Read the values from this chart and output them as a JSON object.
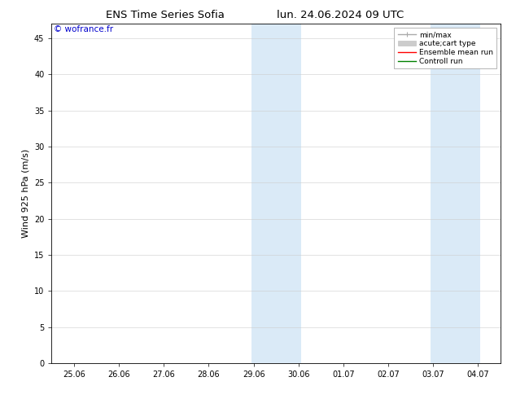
{
  "title_left": "ENS Time Series Sofia",
  "title_right": "lun. 24.06.2024 09 UTC",
  "ylabel": "Wind 925 hPa (m/s)",
  "watermark": "© wofrance.fr",
  "watermark_color": "#0000cc",
  "ylim": [
    0,
    47
  ],
  "yticks": [
    0,
    5,
    10,
    15,
    20,
    25,
    30,
    35,
    40,
    45
  ],
  "xtick_labels": [
    "25.06",
    "26.06",
    "27.06",
    "28.06",
    "29.06",
    "30.06",
    "01.07",
    "02.07",
    "03.07",
    "04.07"
  ],
  "xtick_positions": [
    0,
    1,
    2,
    3,
    4,
    5,
    6,
    7,
    8,
    9
  ],
  "shaded_regions": [
    {
      "xmin": 3.95,
      "xmax": 5.05,
      "color": "#daeaf7"
    },
    {
      "xmin": 7.95,
      "xmax": 9.05,
      "color": "#daeaf7"
    }
  ],
  "background_color": "#ffffff",
  "plot_bg_color": "#ffffff",
  "legend_items": [
    {
      "label": "min/max",
      "color": "#aaaaaa",
      "lw": 1.0,
      "style": "minmax"
    },
    {
      "label": "acute;cart type",
      "color": "#cccccc",
      "lw": 6,
      "style": "bar"
    },
    {
      "label": "Ensemble mean run",
      "color": "#ff0000",
      "lw": 1.0,
      "style": "line"
    },
    {
      "label": "Controll run",
      "color": "#008000",
      "lw": 1.0,
      "style": "line"
    }
  ],
  "grid_color": "#cccccc",
  "spine_color": "#000000",
  "title_fontsize": 9.5,
  "ylabel_fontsize": 8,
  "tick_fontsize": 7,
  "watermark_fontsize": 7.5,
  "legend_fontsize": 6.5
}
